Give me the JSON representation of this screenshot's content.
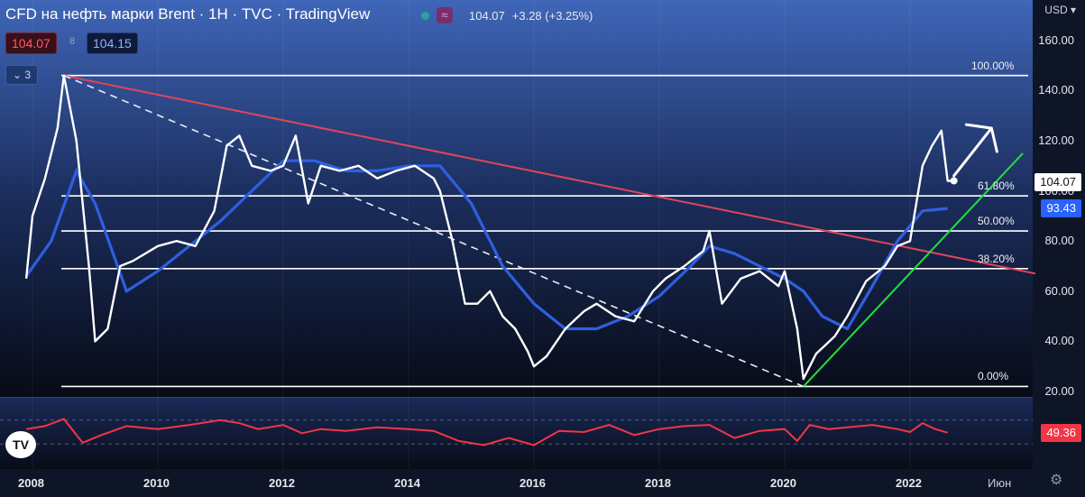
{
  "header": {
    "title": "CFD на нефть марки Brent · 1Н · TVC · TradingView",
    "last": "104.07",
    "change": "+3.28 (+3.25%)",
    "wave_icon": "≈"
  },
  "quote": {
    "sell": "104.07",
    "spread": "8",
    "buy": "104.15"
  },
  "collapse_label": "3",
  "axis": {
    "currency": "USD",
    "y_ticks": [
      "160.00",
      "140.00",
      "120.00",
      "100.00",
      "80.00",
      "60.00",
      "40.00",
      "20.00"
    ],
    "x_ticks": [
      "2008",
      "2010",
      "2012",
      "2014",
      "2016",
      "2018",
      "2020",
      "2022"
    ],
    "x_month": "Июн"
  },
  "tags": {
    "price": "104.07",
    "ma": "93.43",
    "rsi": "49.36"
  },
  "fib_labels": [
    "100.00%",
    "61.80%",
    "50.00%",
    "38.20%",
    "0.00%"
  ],
  "colors": {
    "price": "#ffffff",
    "ma": "#2f5fe0",
    "rsi": "#f23645",
    "trend_down": "#e0455a",
    "trend_up": "#22e03a"
  },
  "chart_data": {
    "type": "line",
    "ylim": [
      20,
      165
    ],
    "price_series": {
      "x": [
        2007.9,
        2008.0,
        2008.2,
        2008.4,
        2008.5,
        2008.7,
        2008.9,
        2009.0,
        2009.2,
        2009.4,
        2009.6,
        2009.8,
        2010.0,
        2010.3,
        2010.6,
        2010.9,
        2011.1,
        2011.3,
        2011.5,
        2011.8,
        2012.0,
        2012.2,
        2012.4,
        2012.6,
        2012.9,
        2013.2,
        2013.5,
        2013.8,
        2014.1,
        2014.4,
        2014.5,
        2014.7,
        2014.9,
        2015.1,
        2015.3,
        2015.5,
        2015.7,
        2015.9,
        2016.0,
        2016.2,
        2016.5,
        2016.8,
        2017.0,
        2017.3,
        2017.6,
        2017.9,
        2018.1,
        2018.4,
        2018.7,
        2018.8,
        2019.0,
        2019.3,
        2019.6,
        2019.9,
        2020.0,
        2020.2,
        2020.3,
        2020.5,
        2020.8,
        2021.0,
        2021.3,
        2021.6,
        2021.8,
        2022.0,
        2022.2,
        2022.35,
        2022.5,
        2022.6,
        2022.7
      ],
      "y": [
        65,
        90,
        105,
        125,
        146,
        120,
        70,
        40,
        45,
        70,
        72,
        75,
        78,
        80,
        78,
        92,
        118,
        122,
        110,
        108,
        110,
        122,
        95,
        110,
        108,
        110,
        105,
        108,
        110,
        105,
        100,
        80,
        55,
        55,
        60,
        50,
        45,
        36,
        30,
        34,
        45,
        52,
        55,
        50,
        48,
        60,
        65,
        70,
        76,
        84,
        55,
        65,
        68,
        62,
        68,
        45,
        25,
        35,
        42,
        50,
        64,
        70,
        78,
        80,
        110,
        118,
        124,
        104,
        104
      ]
    },
    "ma_series": {
      "x": [
        2007.9,
        2008.3,
        2008.7,
        2009.0,
        2009.5,
        2010.0,
        2010.5,
        2011.0,
        2011.5,
        2012.0,
        2012.5,
        2013.0,
        2013.5,
        2014.0,
        2014.5,
        2015.0,
        2015.5,
        2016.0,
        2016.5,
        2017.0,
        2017.5,
        2018.0,
        2018.5,
        2018.8,
        2019.2,
        2019.6,
        2020.0,
        2020.3,
        2020.6,
        2021.0,
        2021.4,
        2021.8,
        2022.2,
        2022.6
      ],
      "y": [
        66,
        80,
        108,
        95,
        60,
        68,
        78,
        88,
        100,
        112,
        112,
        108,
        108,
        110,
        110,
        95,
        70,
        55,
        45,
        45,
        50,
        58,
        70,
        78,
        75,
        70,
        65,
        60,
        50,
        45,
        62,
        80,
        92,
        93
      ]
    },
    "rsi_series": {
      "x": [
        2007.9,
        2008.2,
        2008.5,
        2008.8,
        2009.1,
        2009.5,
        2010.0,
        2010.5,
        2011.0,
        2011.3,
        2011.6,
        2012.0,
        2012.3,
        2012.6,
        2013.0,
        2013.5,
        2014.0,
        2014.4,
        2014.8,
        2015.2,
        2015.6,
        2016.0,
        2016.4,
        2016.8,
        2017.2,
        2017.6,
        2018.0,
        2018.4,
        2018.8,
        2019.2,
        2019.6,
        2020.0,
        2020.2,
        2020.4,
        2020.7,
        2021.0,
        2021.4,
        2021.8,
        2022.0,
        2022.2,
        2022.4,
        2022.6
      ],
      "y": [
        55,
        60,
        72,
        32,
        45,
        60,
        55,
        62,
        70,
        65,
        55,
        62,
        48,
        55,
        52,
        58,
        55,
        52,
        35,
        28,
        40,
        28,
        52,
        50,
        62,
        45,
        55,
        60,
        62,
        40,
        52,
        55,
        35,
        62,
        55,
        58,
        62,
        55,
        50,
        65,
        55,
        49
      ]
    },
    "rsi_value": 49.36,
    "fib_levels": [
      {
        "label": "100.00%",
        "value": 146
      },
      {
        "label": "61.80%",
        "value": 98
      },
      {
        "label": "50.00%",
        "value": 84
      },
      {
        "label": "38.20%",
        "value": 69
      },
      {
        "label": "0.00%",
        "value": 22
      }
    ],
    "trend_lines": [
      {
        "name": "down",
        "x": [
          2008.5,
          2024.0
        ],
        "y": [
          146,
          67
        ]
      },
      {
        "name": "up",
        "x": [
          2020.3,
          2023.8
        ],
        "y": [
          22,
          115
        ]
      },
      {
        "name": "dashed",
        "x": [
          2008.5,
          2020.3
        ],
        "y": [
          146,
          22
        ]
      }
    ],
    "arrow": {
      "x": [
        2022.7,
        2023.3
      ],
      "y": [
        106,
        125
      ]
    }
  }
}
